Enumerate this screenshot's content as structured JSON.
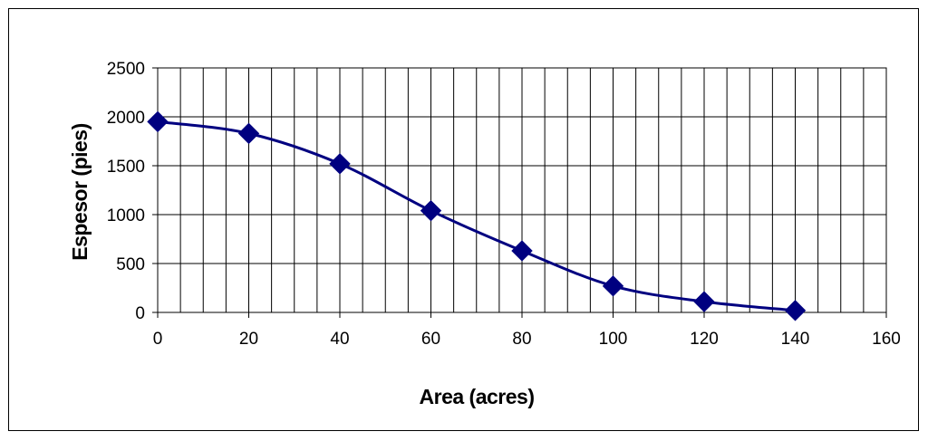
{
  "chart_data": {
    "type": "line",
    "title": "",
    "xlabel": "Area (acres)",
    "ylabel": "Espesor (pies)",
    "xlim": [
      0,
      160
    ],
    "ylim": [
      0,
      2500
    ],
    "x_ticks": [
      0,
      20,
      40,
      60,
      80,
      100,
      120,
      140,
      160
    ],
    "y_ticks": [
      0,
      500,
      1000,
      1500,
      2000,
      2500
    ],
    "x_minor_step": 5,
    "grid": true,
    "legend": "none",
    "marker": "diamond",
    "smooth": true,
    "series": [
      {
        "x": [
          0,
          20,
          40,
          60,
          80,
          100,
          120,
          140
        ],
        "y": [
          1950,
          1830,
          1520,
          1040,
          630,
          270,
          110,
          20
        ],
        "color": "#000080"
      }
    ]
  }
}
